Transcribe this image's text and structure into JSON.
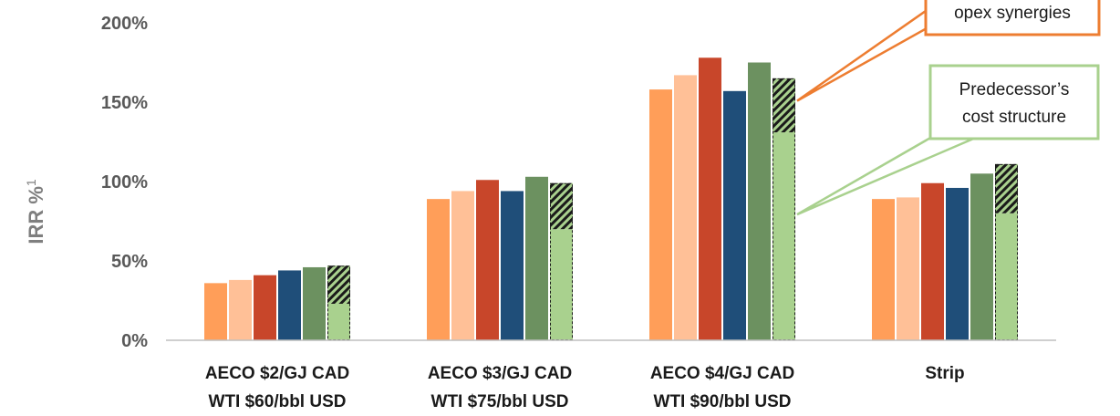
{
  "chart_data": {
    "type": "bar",
    "categories": [
      [
        "AECO $2/GJ CAD",
        "WTI $60/bbl USD"
      ],
      [
        "AECO $3/GJ CAD",
        "WTI $75/bbl USD"
      ],
      [
        "AECO $4/GJ CAD",
        "WTI $90/bbl USD"
      ],
      [
        "Strip"
      ]
    ],
    "ylabel": "IRR %",
    "ylabel_superscript": "1",
    "ylim": [
      0,
      200
    ],
    "yticks": [
      0,
      50,
      100,
      150,
      200
    ],
    "ytick_labels": [
      "0%",
      "50%",
      "100%",
      "150%",
      "200%"
    ],
    "grid": false,
    "series": [
      {
        "color": "#FF9E59",
        "values": [
          36,
          89,
          158,
          89
        ]
      },
      {
        "color": "#FFC097",
        "values": [
          38,
          94,
          167,
          90
        ]
      },
      {
        "color": "#C8462A",
        "values": [
          41,
          101,
          178,
          99
        ]
      },
      {
        "color": "#1F4E79",
        "values": [
          44,
          94,
          157,
          96
        ]
      },
      {
        "color": "#6C9160",
        "values": [
          46,
          103,
          175,
          105
        ]
      },
      {
        "color": "#A9D18E",
        "values": [
          23,
          70,
          131,
          80
        ],
        "stack_top_values": [
          47,
          99,
          165,
          111
        ],
        "stack_top_pattern": "hatched"
      }
    ],
    "annotations": [
      {
        "text": "opex synergies",
        "border_color": "#ED7D31",
        "points_to": "hatched segment, AECO $4/GJ CAD"
      },
      {
        "text": "Predecessor’s cost structure",
        "lines": [
          "Predecessor’s",
          "cost structure"
        ],
        "border_color": "#A9D18E",
        "points_to": "solid light-green segment, AECO $4/GJ CAD"
      }
    ]
  }
}
